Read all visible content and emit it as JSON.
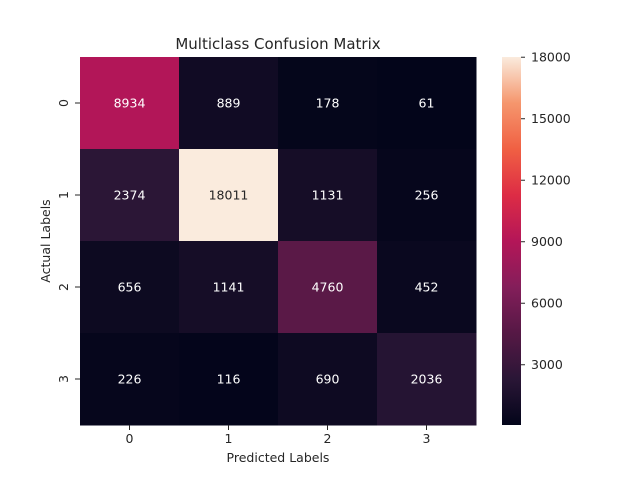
{
  "chart_data": {
    "type": "heatmap",
    "title": "Multiclass Confusion Matrix",
    "xlabel": "Predicted Labels",
    "ylabel": "Actual Labels",
    "x_categories": [
      "0",
      "1",
      "2",
      "3"
    ],
    "y_categories": [
      "0",
      "1",
      "2",
      "3"
    ],
    "values": [
      [
        8934,
        889,
        178,
        61
      ],
      [
        2374,
        18011,
        1131,
        256
      ],
      [
        656,
        1141,
        4760,
        452
      ],
      [
        226,
        116,
        690,
        2036
      ]
    ],
    "colormap": "rocket",
    "colorbar_range": [
      61,
      18011
    ],
    "colorbar_ticks": [
      3000,
      6000,
      9000,
      12000,
      15000,
      18000
    ]
  }
}
